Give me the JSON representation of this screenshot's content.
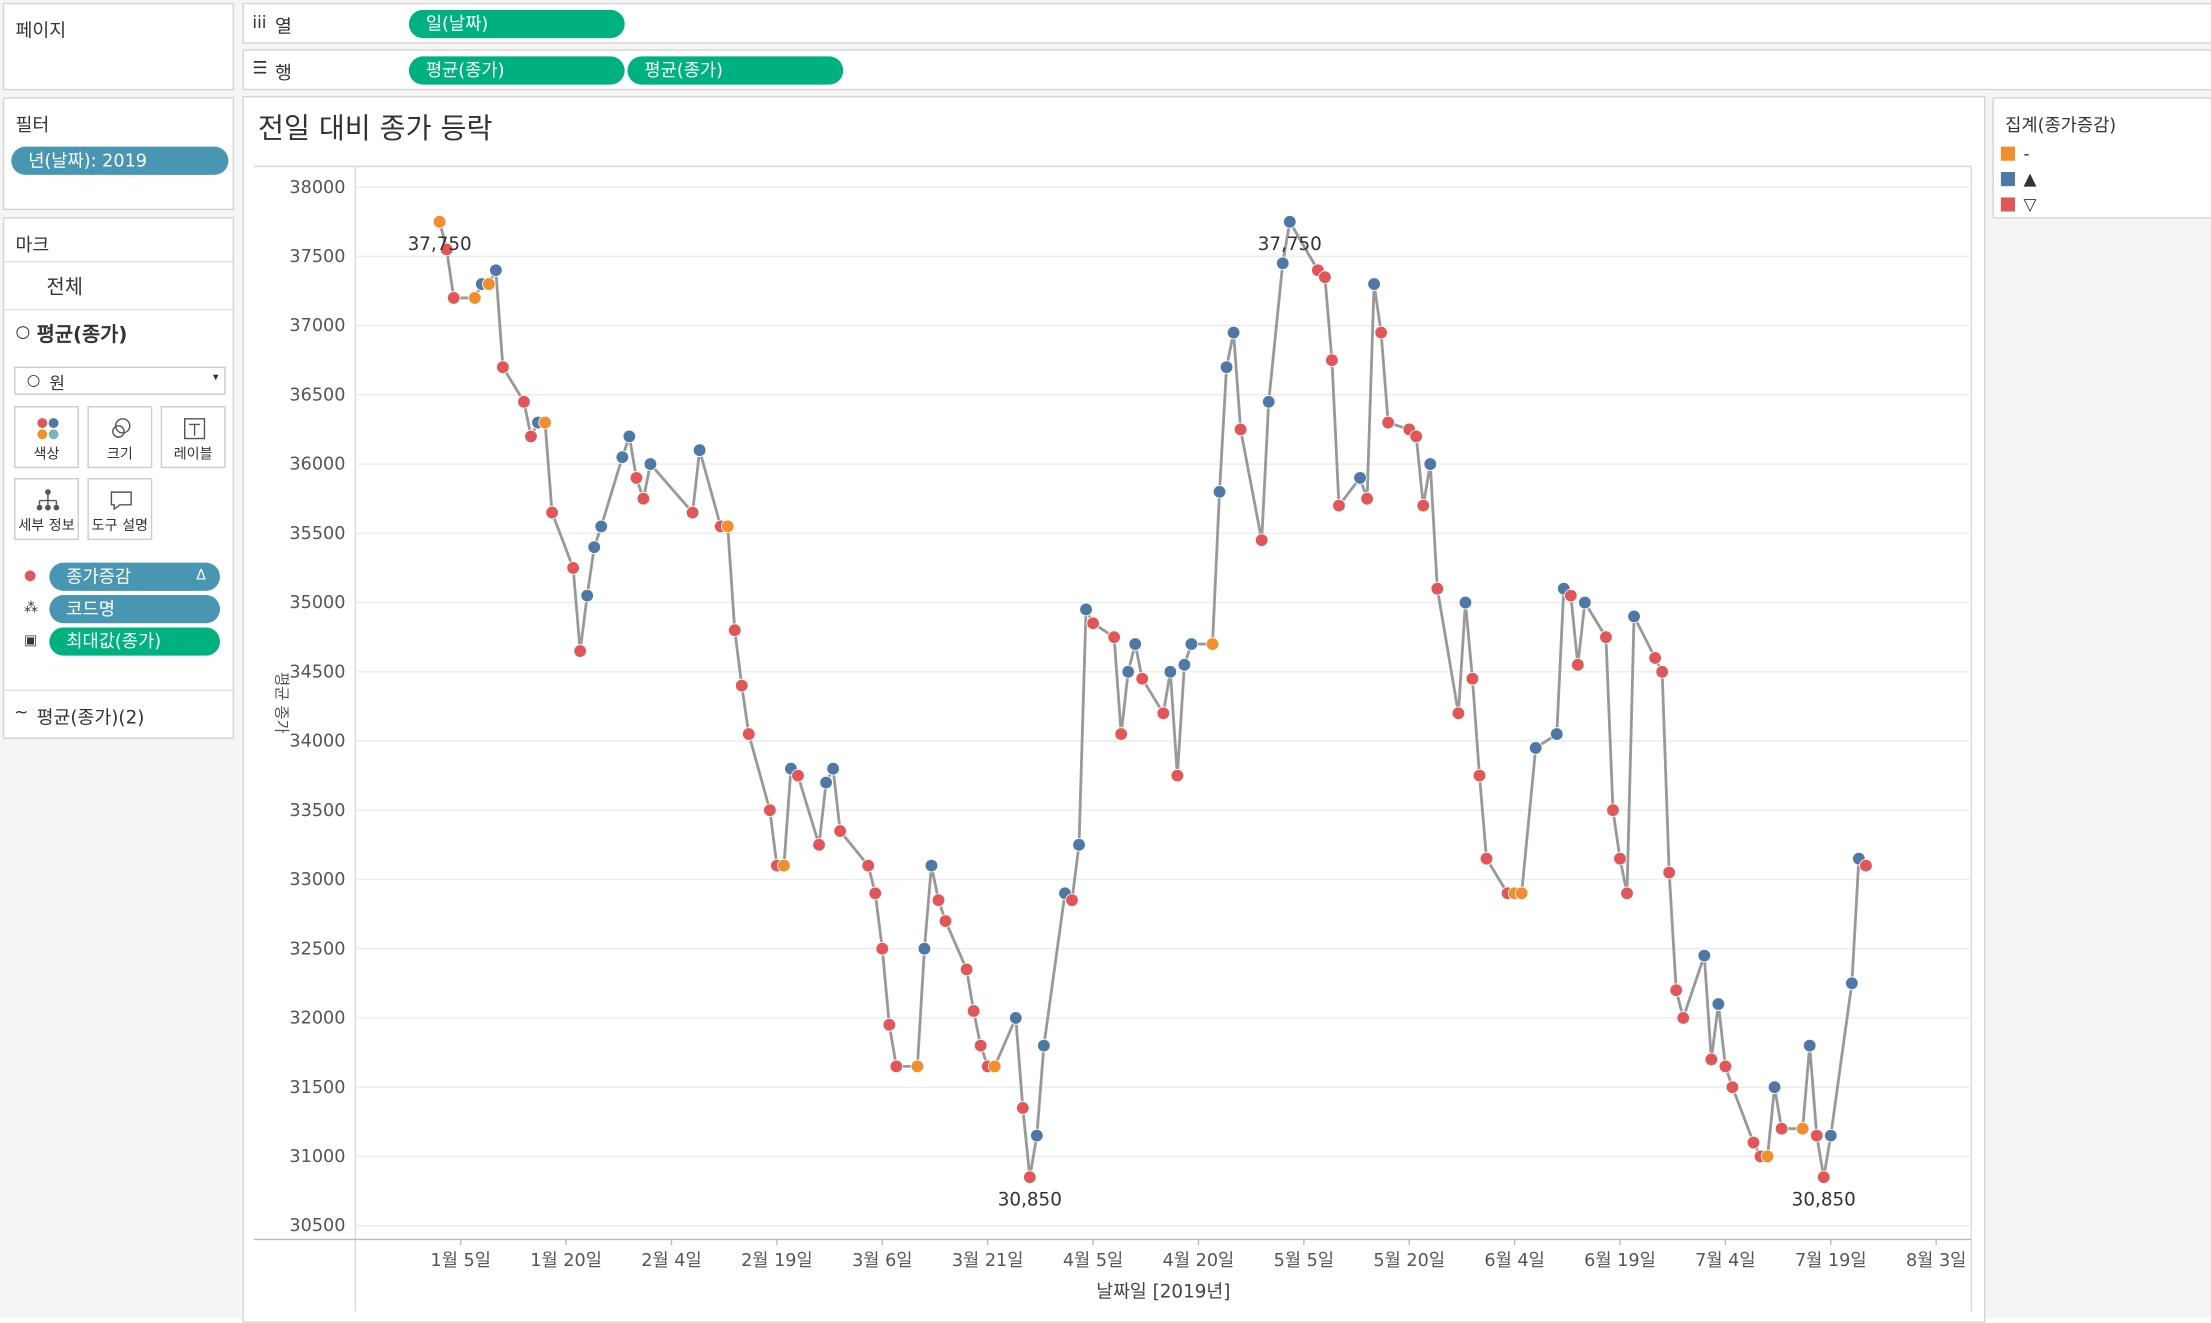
{
  "ui": {
    "pages": "페이지",
    "columns_label": "열",
    "columns_pill": "일(날짜)",
    "rows_label": "행",
    "rows_pills": [
      "평균(종가)",
      "평균(종가)"
    ],
    "filters": {
      "title": "필터",
      "pill": "년(날짜): 2019"
    },
    "marks": {
      "title": "마크",
      "all": "전체",
      "measure": "평균(종가)",
      "mark_type": "원",
      "cards": [
        "색상",
        "크기",
        "레이블",
        "세부 정보",
        "도구 설명"
      ],
      "pills": [
        "종가증감",
        "코드명",
        "최대값(종가)"
      ],
      "second": "평균(종가)(2)"
    }
  },
  "chart_data": {
    "type": "line",
    "title": "전일 대비 종가 등락",
    "y_label": "평균 종가",
    "x_label": "날짜일 [2019년]",
    "legend_title": "집계(종가증감)",
    "legend": [
      {
        "label": "-",
        "color": "#f28e2b"
      },
      {
        "label": "▲",
        "color": "#4e79a7"
      },
      {
        "label": "▽",
        "color": "#e15759"
      }
    ],
    "line_color": "#999999",
    "grid": true,
    "xlim": [
      "2018-12-21",
      "2019-08-08"
    ],
    "xticks": [
      {
        "value": "2019-01-05",
        "label": "1월 5일"
      },
      {
        "value": "2019-01-20",
        "label": "1월 20일"
      },
      {
        "value": "2019-02-04",
        "label": "2월 4일"
      },
      {
        "value": "2019-02-19",
        "label": "2월 19일"
      },
      {
        "value": "2019-03-06",
        "label": "3월 6일"
      },
      {
        "value": "2019-03-21",
        "label": "3월 21일"
      },
      {
        "value": "2019-04-05",
        "label": "4월 5일"
      },
      {
        "value": "2019-04-20",
        "label": "4월 20일"
      },
      {
        "value": "2019-05-05",
        "label": "5월 5일"
      },
      {
        "value": "2019-05-20",
        "label": "5월 20일"
      },
      {
        "value": "2019-06-04",
        "label": "6월 4일"
      },
      {
        "value": "2019-06-19",
        "label": "6월 19일"
      },
      {
        "value": "2019-07-04",
        "label": "7월 4일"
      },
      {
        "value": "2019-07-19",
        "label": "7월 19일"
      },
      {
        "value": "2019-08-03",
        "label": "8월 3일"
      }
    ],
    "ylim": [
      30400,
      38150
    ],
    "yticks": [
      30500,
      31000,
      31500,
      32000,
      32500,
      33000,
      33500,
      34000,
      34500,
      35000,
      35500,
      36000,
      36500,
      37000,
      37500,
      38000
    ],
    "x": [
      "2019-01-02",
      "2019-01-03",
      "2019-01-04",
      "2019-01-07",
      "2019-01-08",
      "2019-01-09",
      "2019-01-10",
      "2019-01-11",
      "2019-01-14",
      "2019-01-15",
      "2019-01-16",
      "2019-01-17",
      "2019-01-18",
      "2019-01-21",
      "2019-01-22",
      "2019-01-23",
      "2019-01-24",
      "2019-01-25",
      "2019-01-28",
      "2019-01-29",
      "2019-01-30",
      "2019-01-31",
      "2019-02-01",
      "2019-02-07",
      "2019-02-08",
      "2019-02-11",
      "2019-02-12",
      "2019-02-13",
      "2019-02-14",
      "2019-02-15",
      "2019-02-18",
      "2019-02-19",
      "2019-02-20",
      "2019-02-21",
      "2019-02-22",
      "2019-02-25",
      "2019-02-26",
      "2019-02-27",
      "2019-02-28",
      "2019-03-04",
      "2019-03-05",
      "2019-03-06",
      "2019-03-07",
      "2019-03-08",
      "2019-03-11",
      "2019-03-12",
      "2019-03-13",
      "2019-03-14",
      "2019-03-15",
      "2019-03-18",
      "2019-03-19",
      "2019-03-20",
      "2019-03-21",
      "2019-03-22",
      "2019-03-25",
      "2019-03-26",
      "2019-03-27",
      "2019-03-28",
      "2019-03-29",
      "2019-04-01",
      "2019-04-02",
      "2019-04-03",
      "2019-04-04",
      "2019-04-05",
      "2019-04-08",
      "2019-04-09",
      "2019-04-10",
      "2019-04-11",
      "2019-04-12",
      "2019-04-15",
      "2019-04-16",
      "2019-04-17",
      "2019-04-18",
      "2019-04-19",
      "2019-04-22",
      "2019-04-23",
      "2019-04-24",
      "2019-04-25",
      "2019-04-26",
      "2019-04-29",
      "2019-04-30",
      "2019-05-02",
      "2019-05-03",
      "2019-05-07",
      "2019-05-08",
      "2019-05-09",
      "2019-05-10",
      "2019-05-13",
      "2019-05-14",
      "2019-05-15",
      "2019-05-16",
      "2019-05-17",
      "2019-05-20",
      "2019-05-21",
      "2019-05-22",
      "2019-05-23",
      "2019-05-24",
      "2019-05-27",
      "2019-05-28",
      "2019-05-29",
      "2019-05-30",
      "2019-05-31",
      "2019-06-03",
      "2019-06-04",
      "2019-06-05",
      "2019-06-07",
      "2019-06-10",
      "2019-06-11",
      "2019-06-12",
      "2019-06-13",
      "2019-06-14",
      "2019-06-17",
      "2019-06-18",
      "2019-06-19",
      "2019-06-20",
      "2019-06-21",
      "2019-06-24",
      "2019-06-25",
      "2019-06-26",
      "2019-06-27",
      "2019-06-28",
      "2019-07-01",
      "2019-07-02",
      "2019-07-03",
      "2019-07-04",
      "2019-07-05",
      "2019-07-08",
      "2019-07-09",
      "2019-07-10",
      "2019-07-11",
      "2019-07-12",
      "2019-07-15",
      "2019-07-16",
      "2019-07-17",
      "2019-07-18",
      "2019-07-19",
      "2019-07-22",
      "2019-07-23",
      "2019-07-24"
    ],
    "values": [
      37750,
      37550,
      37200,
      37200,
      37300,
      37300,
      37400,
      36700,
      36450,
      36200,
      36300,
      36300,
      35650,
      35250,
      34650,
      35050,
      35400,
      35550,
      36050,
      36200,
      35900,
      35750,
      36000,
      35650,
      36100,
      35550,
      35550,
      34800,
      34400,
      34050,
      33500,
      33100,
      33100,
      33800,
      33750,
      33250,
      33700,
      33800,
      33350,
      33100,
      32900,
      32500,
      31950,
      31650,
      31650,
      32500,
      33100,
      32850,
      32700,
      32350,
      32050,
      31800,
      31650,
      31650,
      32000,
      31350,
      30850,
      31150,
      31800,
      32900,
      32850,
      33250,
      34950,
      34850,
      34750,
      34050,
      34500,
      34700,
      34450,
      34200,
      34500,
      33750,
      34550,
      34700,
      34700,
      35800,
      36700,
      36950,
      36250,
      35450,
      36450,
      37450,
      37750,
      37400,
      37350,
      36750,
      35700,
      35900,
      35750,
      37300,
      36950,
      36300,
      36250,
      36200,
      35700,
      36000,
      35100,
      34200,
      35000,
      34450,
      33750,
      33150,
      32900,
      32900,
      32900,
      33950,
      34050,
      35100,
      35050,
      34550,
      35000,
      34750,
      33500,
      33150,
      32900,
      34900,
      34600,
      34500,
      33050,
      32200,
      32000,
      32450,
      31700,
      32100,
      31650,
      31500,
      31100,
      31000,
      31000,
      31500,
      31200,
      31200,
      31800,
      31150,
      30850,
      31150,
      32250,
      33150,
      33100
    ],
    "value_labels": [
      "37,750",
      null,
      null,
      null,
      null,
      null,
      null,
      null,
      null,
      null,
      null,
      null,
      null,
      null,
      null,
      null,
      null,
      null,
      null,
      null,
      null,
      null,
      null,
      null,
      null,
      null,
      null,
      null,
      null,
      null,
      null,
      null,
      null,
      null,
      null,
      null,
      null,
      null,
      null,
      null,
      null,
      null,
      null,
      null,
      null,
      null,
      null,
      null,
      null,
      null,
      null,
      null,
      null,
      null,
      null,
      null,
      "30,850",
      null,
      null,
      null,
      null,
      null,
      null,
      null,
      null,
      null,
      null,
      null,
      null,
      null,
      null,
      null,
      null,
      null,
      null,
      null,
      null,
      null,
      null,
      null,
      null,
      null,
      "37,750",
      null,
      null,
      null,
      null,
      null,
      null,
      null,
      null,
      null,
      null,
      null,
      null,
      null,
      null,
      null,
      null,
      null,
      null,
      null,
      null,
      null,
      null,
      null,
      null,
      null,
      null,
      null,
      null,
      null,
      null,
      null,
      null,
      null,
      null,
      null,
      null,
      null,
      null,
      null,
      null,
      null,
      null,
      null,
      null,
      null,
      null,
      null,
      null,
      null,
      null,
      null,
      "30,850",
      null,
      null,
      null,
      null
    ]
  }
}
